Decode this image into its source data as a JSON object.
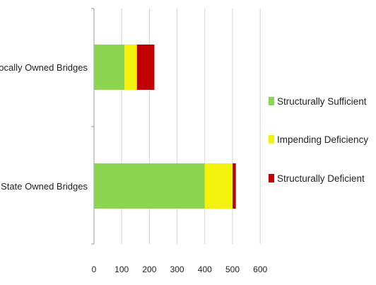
{
  "chart_data": {
    "type": "bar",
    "orientation": "horizontal",
    "stacked": true,
    "title": "",
    "xlabel": "",
    "ylabel": "",
    "categories": [
      "Locally Owned Bridges",
      "State Owned Bridges"
    ],
    "series": [
      {
        "name": "Structurally Sufficient",
        "color": "#8CD552",
        "values": [
          110,
          400
        ]
      },
      {
        "name": "Impending Deficiency",
        "color": "#F2F20A",
        "values": [
          45,
          100
        ]
      },
      {
        "name": "Structurally Deficient",
        "color": "#C00000",
        "values": [
          63,
          12
        ]
      }
    ],
    "xlim": [
      0,
      600
    ],
    "xticks": [
      "0",
      "100",
      "200",
      "300",
      "400",
      "500",
      "600"
    ],
    "grid": true,
    "legend_position": "right"
  }
}
